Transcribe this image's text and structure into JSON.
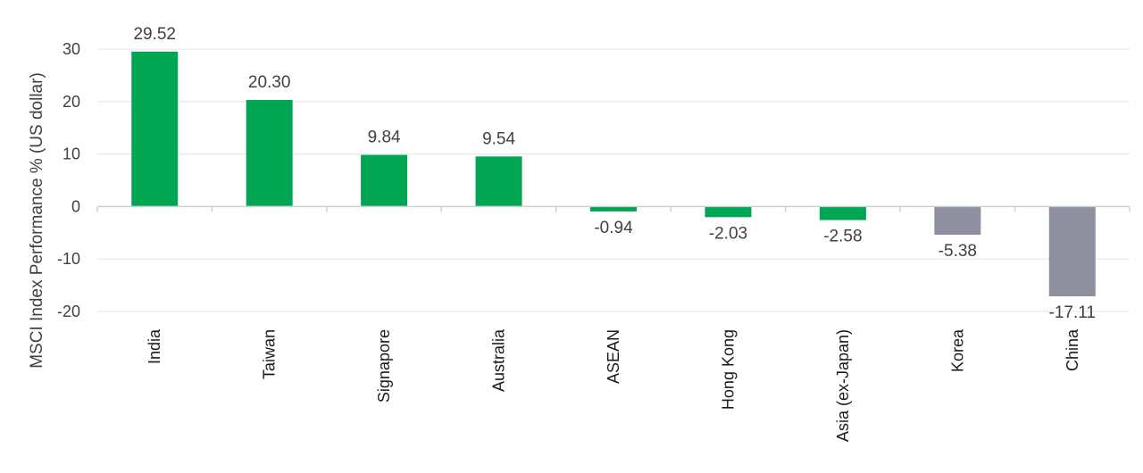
{
  "chart_data": {
    "type": "bar",
    "title": "",
    "xlabel": "",
    "ylabel": "MSCI Index Performance % (US dollar)",
    "categories": [
      "India",
      "Taiwan",
      "Signapore",
      "Australia",
      "ASEAN",
      "Hong Kong",
      "Asia (ex-Japan)",
      "Korea",
      "China"
    ],
    "values": [
      29.52,
      20.3,
      9.84,
      9.54,
      -0.94,
      -2.03,
      -2.58,
      -5.38,
      -17.11
    ],
    "value_labels": [
      "29.52",
      "20.30",
      "9.84",
      "9.54",
      "-0.94",
      "-2.03",
      "-2.58",
      "-5.38",
      "-17.11"
    ],
    "ylim": [
      -20,
      30
    ],
    "yticks": [
      30,
      20,
      10,
      0,
      -10,
      -20
    ],
    "ytick_labels": [
      "30",
      "20",
      "10",
      "0",
      "-10",
      "-20"
    ],
    "grid": true,
    "legend": "none",
    "colors": {
      "positive": "#00a651",
      "negative_green": "#00a651",
      "negative_grey": "#8e8f9f",
      "bar_colors": [
        "#00a651",
        "#00a651",
        "#00a651",
        "#00a651",
        "#00a651",
        "#00a651",
        "#00a651",
        "#8e8f9f",
        "#8e8f9f"
      ],
      "grid": "#e3e3e3",
      "axis": "#d0d0d0"
    }
  }
}
